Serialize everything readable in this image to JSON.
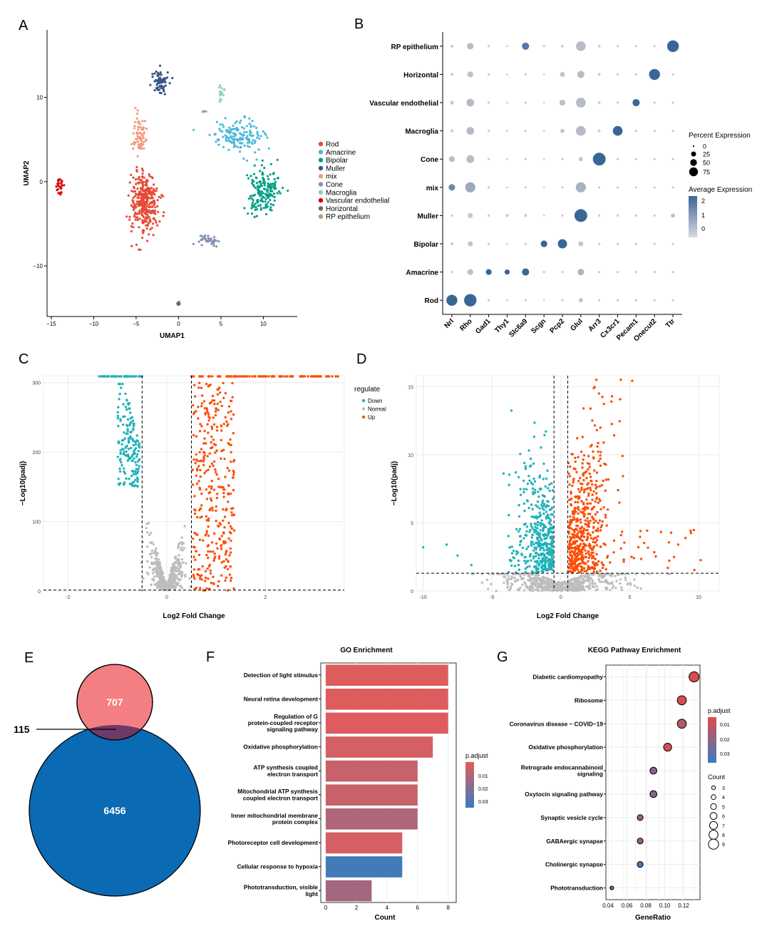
{
  "panels": {
    "a": "A",
    "b": "B",
    "c": "C",
    "d": "D",
    "e": "E",
    "f": "F",
    "g": "G"
  },
  "chart_data": [
    {
      "panel": "A",
      "type": "scatter",
      "xlabel": "UMAP1",
      "ylabel": "UMAP2",
      "xticks": [
        -15,
        -10,
        -5,
        0,
        5,
        10
      ],
      "yticks": [
        -10,
        0,
        10
      ],
      "xlim": [
        -15.5,
        14
      ],
      "ylim": [
        -16,
        18
      ],
      "legend_placement": "right",
      "clusters": [
        {
          "name": "Rod",
          "color": "#e64b35",
          "center": [
            -4,
            -2.5
          ],
          "spread": [
            1.6,
            3.6
          ],
          "n": 320
        },
        {
          "name": "Amacrine",
          "color": "#4db8d6",
          "center": [
            7,
            5.5
          ],
          "spread": [
            3,
            1.8
          ],
          "n": 150
        },
        {
          "name": "Bipolar",
          "color": "#00a087",
          "center": [
            10,
            -1
          ],
          "spread": [
            1.8,
            2.8
          ],
          "n": 180
        },
        {
          "name": "Muller",
          "color": "#3c5488",
          "center": [
            -2.2,
            11.7
          ],
          "spread": [
            1,
            1.4
          ],
          "n": 70
        },
        {
          "name": "mix",
          "color": "#f39b7f",
          "center": [
            -4.6,
            5.5
          ],
          "spread": [
            0.7,
            2.6
          ],
          "n": 70
        },
        {
          "name": "Cone",
          "color": "#8491b4",
          "center": [
            3.5,
            -7
          ],
          "spread": [
            1.3,
            0.7
          ],
          "n": 40
        },
        {
          "name": "Macroglia",
          "color": "#91d1c2",
          "center": [
            5,
            10.5
          ],
          "spread": [
            0.4,
            1.1
          ],
          "n": 20
        },
        {
          "name": "Vascular endothelial",
          "color": "#dc0000",
          "center": [
            -14,
            -0.5
          ],
          "spread": [
            0.35,
            1.2
          ],
          "n": 25
        },
        {
          "name": "Horizontal",
          "color": "#7e6148",
          "center": [
            0,
            -14.5
          ],
          "spread": [
            0.2,
            0.3
          ],
          "n": 8
        },
        {
          "name": "RP epithelium",
          "color": "#b09c85",
          "center": [
            3,
            8.3
          ],
          "spread": [
            0.25,
            0.15
          ],
          "n": 6
        }
      ]
    },
    {
      "panel": "B",
      "type": "scatter",
      "subtype": "dotplot",
      "genes": [
        "Nrl",
        "Rho",
        "Gad1",
        "Thy1",
        "Slc6a9",
        "Scgn",
        "Pcp2",
        "Glul",
        "Arr3",
        "Cx3cr1",
        "Pecam1",
        "Onecut2",
        "Ttr"
      ],
      "cell_types": [
        "RP epithelium",
        "Horizontal",
        "Vascular endothelial",
        "Macroglia",
        "Cone",
        "mix",
        "Muller",
        "Bipolar",
        "Amacrine",
        "Rod"
      ],
      "legend_size_title": "Percent Expression",
      "legend_size_values": [
        "0",
        "25",
        "50",
        "75"
      ],
      "legend_color_title": "Average Expression",
      "legend_color_ticks": [
        "2",
        "1",
        "0"
      ],
      "percent": [
        [
          5,
          25,
          3,
          2,
          30,
          3,
          4,
          55,
          4,
          3,
          3,
          3,
          80
        ],
        [
          5,
          20,
          3,
          2,
          3,
          2,
          15,
          30,
          4,
          3,
          3,
          70,
          3
        ],
        [
          8,
          35,
          3,
          2,
          3,
          2,
          20,
          55,
          4,
          3,
          30,
          3,
          3
        ],
        [
          5,
          35,
          3,
          2,
          3,
          2,
          10,
          55,
          4,
          55,
          3,
          3,
          3
        ],
        [
          20,
          35,
          3,
          2,
          3,
          2,
          3,
          10,
          95,
          3,
          3,
          3,
          3
        ],
        [
          25,
          60,
          3,
          2,
          3,
          2,
          3,
          60,
          3,
          3,
          3,
          3,
          3
        ],
        [
          3,
          15,
          3,
          5,
          5,
          2,
          3,
          95,
          3,
          3,
          3,
          3,
          10
        ],
        [
          5,
          15,
          3,
          2,
          3,
          25,
          50,
          15,
          3,
          3,
          3,
          3,
          3
        ],
        [
          3,
          20,
          20,
          15,
          30,
          3,
          3,
          25,
          3,
          3,
          3,
          3,
          3
        ],
        [
          70,
          90,
          3,
          2,
          3,
          2,
          3,
          10,
          3,
          3,
          3,
          3,
          3
        ]
      ],
      "average": [
        [
          0,
          0.3,
          0,
          0,
          1.8,
          0,
          0,
          0.3,
          0,
          0,
          0,
          0,
          2.3
        ],
        [
          0,
          0.2,
          0,
          0,
          0,
          0,
          0.1,
          0.3,
          0,
          0,
          0,
          2.2,
          0
        ],
        [
          0,
          0.3,
          0,
          0,
          0,
          0,
          0.2,
          0.3,
          0,
          0,
          2.3,
          0,
          0
        ],
        [
          0,
          0.3,
          0,
          0,
          0,
          0,
          0.1,
          0.3,
          0,
          2.3,
          0,
          0,
          0
        ],
        [
          0.2,
          0.3,
          0,
          0,
          0,
          0,
          0,
          0.1,
          2.4,
          0,
          0,
          0,
          0
        ],
        [
          1.4,
          0.7,
          0,
          0,
          0,
          0,
          0,
          0.5,
          0,
          0,
          0,
          0,
          0
        ],
        [
          0,
          0.1,
          0,
          0,
          0,
          0,
          0,
          2.4,
          0,
          0,
          0,
          0,
          0.2
        ],
        [
          0,
          0.1,
          0,
          0,
          0,
          2.3,
          2.4,
          0.1,
          0,
          0,
          0,
          0,
          0
        ],
        [
          0,
          0.2,
          2.3,
          2.3,
          2.3,
          0,
          0,
          0.4,
          0,
          0,
          0,
          0,
          0
        ],
        [
          2.3,
          2.4,
          0,
          0,
          0,
          0,
          0,
          0.1,
          0,
          0,
          0,
          0,
          0
        ]
      ]
    },
    {
      "panel": "C",
      "type": "scatter",
      "subtype": "volcano",
      "xlabel": "Log2 Fold Change",
      "ylabel": "−Log10(padj)",
      "xticks": [
        "-2",
        "0",
        "2"
      ],
      "yticks": [
        "0",
        "100",
        "200",
        "300"
      ],
      "xlim": [
        -2.5,
        3.6
      ],
      "ylim": [
        0,
        310
      ],
      "fc_threshold": [
        -0.5,
        0.5
      ],
      "p_threshold": 1.3,
      "colors": {
        "Down": "#1fb2b8",
        "Normal": "#bdbdbd",
        "Up": "#fc4e07"
      },
      "legend_title": "regulate",
      "legend_labels": [
        "Down",
        "Normal",
        "Up"
      ]
    },
    {
      "panel": "D",
      "type": "scatter",
      "subtype": "volcano",
      "xlabel": "Log2 Fold Change",
      "ylabel": "−Log10(padj)",
      "xticks": [
        "-10",
        "-5",
        "0",
        "5",
        "10"
      ],
      "yticks": [
        "0",
        "5",
        "10",
        "15"
      ],
      "xlim": [
        -10.5,
        11.5
      ],
      "ylim": [
        0,
        15.8
      ],
      "fc_threshold": [
        -0.5,
        0.5
      ],
      "p_threshold": 1.3,
      "colors": {
        "Down": "#1fb2b8",
        "Normal": "#bdbdbd",
        "Up": "#fc4e07"
      }
    },
    {
      "panel": "E",
      "type": "other",
      "subtype": "venn",
      "sets": [
        {
          "label": "707",
          "color": "#f47f82"
        },
        {
          "label": "6456",
          "color": "#0a6ab4"
        }
      ],
      "overlap_label": "115",
      "overlap_color": "#6e3a68"
    },
    {
      "panel": "F",
      "type": "bar",
      "orientation": "horizontal",
      "title": "GO Enrichment",
      "xlabel": "Count",
      "xticks": [
        "0",
        "2",
        "4",
        "6",
        "8"
      ],
      "xlim": [
        0,
        8.2
      ],
      "categories": [
        "Detection of light stimulus",
        "Neural retina development",
        "Regulation of G\nprotein-coupled receptor\nsignaling pathway",
        "Oxidative phosphorylation",
        "ATP synthesis coupled\nelectron transport",
        "Mitochondrial ATP synthesis\ncoupled electron transport",
        "Inner mitochondrial membrane\nprotein complex",
        "Photoreceptor cell development",
        "Cellular response to hypoxia",
        "Phototransduction, visible\nlight"
      ],
      "values": [
        8,
        8,
        8,
        7,
        6,
        6,
        6,
        5,
        5,
        3
      ],
      "padj": [
        0.0005,
        0.0008,
        0.001,
        0.003,
        0.006,
        0.006,
        0.011,
        0.003,
        0.036,
        0.014
      ],
      "legend_title": "p.adjust",
      "legend_ticks": [
        "0.01",
        "0.02",
        "0.03"
      ]
    },
    {
      "panel": "G",
      "type": "scatter",
      "subtype": "enrichment dotplot",
      "title": "KEGG Pathway Enrichment",
      "xlabel": "GeneRatio",
      "xticks": [
        "0.04",
        "0.06",
        "0.08",
        "0.10",
        "0.12"
      ],
      "xlim": [
        0.04,
        0.135
      ],
      "categories": [
        "Diabetic cardiomyopathy",
        "Ribosome",
        "Coronavirus disease − COVID−19",
        "Oxidative phosphorylation",
        "Retrograde endocannabinoid\nsignaling",
        "Oxytocin signaling pathway",
        "Synaptic vesicle cycle",
        "GABAergic synapse",
        "Cholinergic synapse",
        "Phototransduction"
      ],
      "gene_ratio": [
        0.131,
        0.118,
        0.118,
        0.103,
        0.088,
        0.088,
        0.074,
        0.074,
        0.074,
        0.044
      ],
      "count": [
        9,
        8,
        8,
        7,
        6,
        6,
        5,
        5,
        5,
        3
      ],
      "padj": [
        0.001,
        0.002,
        0.01,
        0.002,
        0.02,
        0.02,
        0.015,
        0.015,
        0.035,
        0.03
      ],
      "legend_color_title": "p.adjust",
      "legend_color_ticks": [
        "0.01",
        "0.02",
        "0.03"
      ],
      "legend_size_title": "Count",
      "legend_size_values": [
        "3",
        "4",
        "5",
        "6",
        "7",
        "8",
        "9"
      ]
    }
  ]
}
